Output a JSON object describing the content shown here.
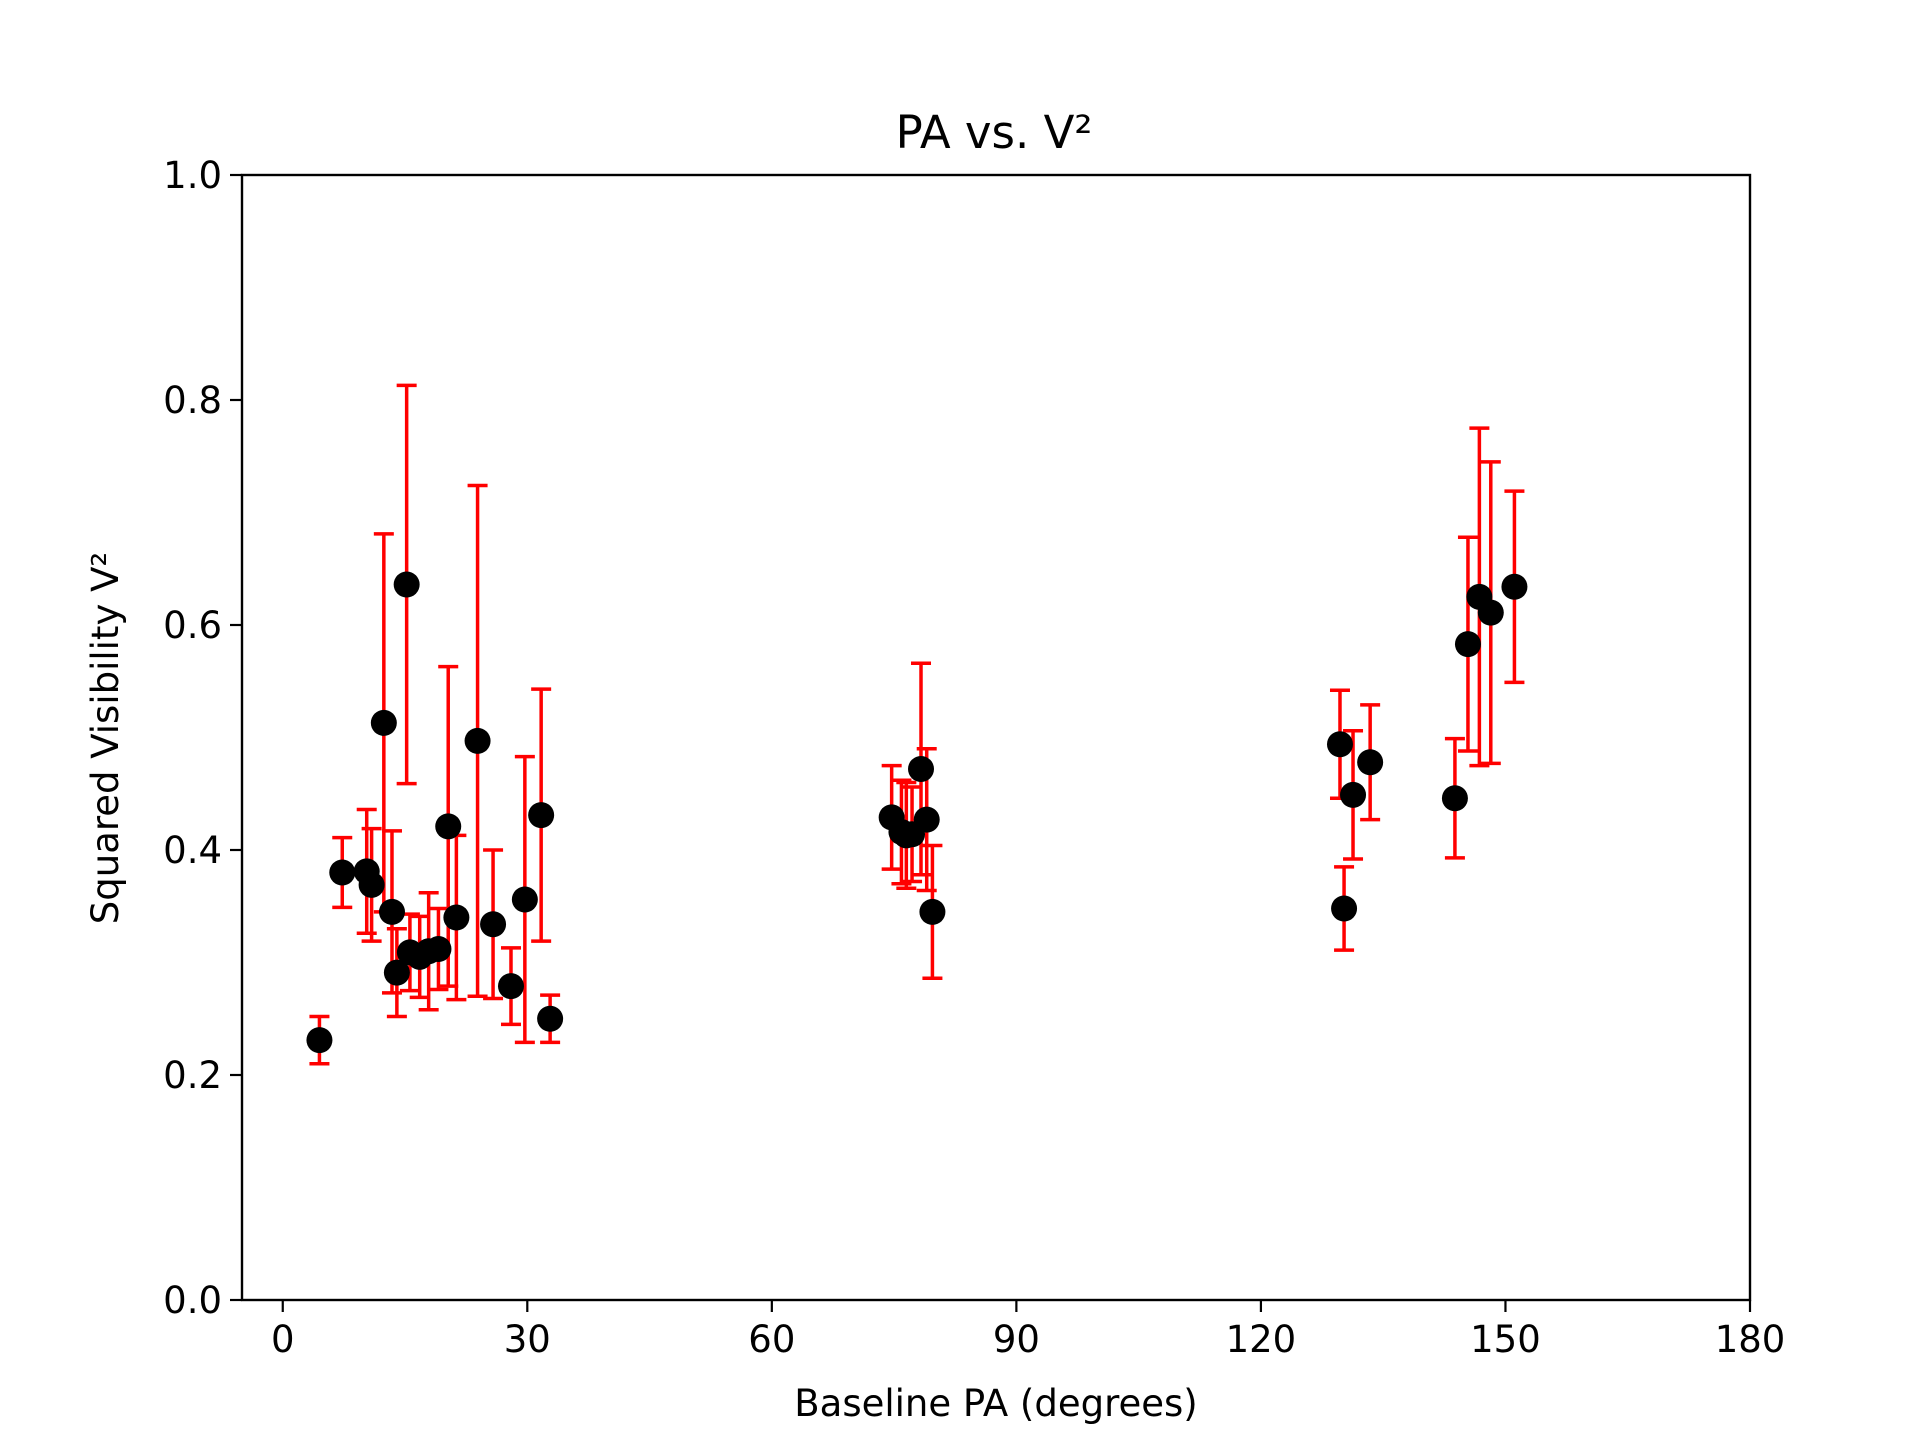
{
  "chart_data": {
    "type": "scatter",
    "title": "PA vs. V²",
    "xlabel": "Baseline PA (degrees)",
    "ylabel": "Squared Visibility V²",
    "xlim": [
      -5,
      180
    ],
    "ylim": [
      0,
      1
    ],
    "xticks": [
      0,
      30,
      60,
      90,
      120,
      150,
      180
    ],
    "xtick_labels": [
      "0",
      "30",
      "60",
      "90",
      "120",
      "150",
      "180"
    ],
    "yticks": [
      0.0,
      0.2,
      0.4,
      0.6,
      0.8,
      1.0
    ],
    "ytick_labels": [
      "0.0",
      "0.2",
      "0.4",
      "0.6",
      "0.8",
      "1.0"
    ],
    "grid": false,
    "legend": false,
    "marker_color": "#000000",
    "errorbar_color": "#ff0000",
    "series": [
      {
        "points": [
          {
            "x": 4.5,
            "y": 0.231,
            "err": 0.021
          },
          {
            "x": 7.3,
            "y": 0.38,
            "err": 0.031
          },
          {
            "x": 10.3,
            "y": 0.381,
            "err": 0.055
          },
          {
            "x": 10.9,
            "y": 0.369,
            "err": 0.05
          },
          {
            "x": 12.4,
            "y": 0.513,
            "err": 0.168
          },
          {
            "x": 13.4,
            "y": 0.345,
            "err": 0.072
          },
          {
            "x": 14.0,
            "y": 0.291,
            "err": 0.039
          },
          {
            "x": 15.2,
            "y": 0.636,
            "err": 0.177
          },
          {
            "x": 15.6,
            "y": 0.309,
            "err": 0.034
          },
          {
            "x": 16.8,
            "y": 0.305,
            "err": 0.036
          },
          {
            "x": 17.9,
            "y": 0.31,
            "err": 0.052
          },
          {
            "x": 19.1,
            "y": 0.312,
            "err": 0.036
          },
          {
            "x": 20.3,
            "y": 0.421,
            "err": 0.142
          },
          {
            "x": 21.3,
            "y": 0.34,
            "err": 0.073
          },
          {
            "x": 23.9,
            "y": 0.497,
            "err": 0.227
          },
          {
            "x": 25.8,
            "y": 0.334,
            "err": 0.066
          },
          {
            "x": 28.0,
            "y": 0.279,
            "err": 0.034
          },
          {
            "x": 29.7,
            "y": 0.356,
            "err": 0.127
          },
          {
            "x": 31.7,
            "y": 0.431,
            "err": 0.112
          },
          {
            "x": 32.8,
            "y": 0.25,
            "err": 0.021
          },
          {
            "x": 74.7,
            "y": 0.429,
            "err": 0.046
          },
          {
            "x": 75.9,
            "y": 0.416,
            "err": 0.046
          },
          {
            "x": 76.5,
            "y": 0.413,
            "err": 0.047
          },
          {
            "x": 77.2,
            "y": 0.414,
            "err": 0.042
          },
          {
            "x": 78.3,
            "y": 0.472,
            "err": 0.094
          },
          {
            "x": 79.0,
            "y": 0.427,
            "err": 0.063
          },
          {
            "x": 79.7,
            "y": 0.345,
            "err": 0.059
          },
          {
            "x": 129.7,
            "y": 0.494,
            "err": 0.048
          },
          {
            "x": 130.2,
            "y": 0.348,
            "err": 0.037
          },
          {
            "x": 131.3,
            "y": 0.449,
            "err": 0.057
          },
          {
            "x": 133.4,
            "y": 0.478,
            "err": 0.051
          },
          {
            "x": 143.8,
            "y": 0.446,
            "err": 0.053
          },
          {
            "x": 145.4,
            "y": 0.583,
            "err": 0.095
          },
          {
            "x": 146.8,
            "y": 0.625,
            "err": 0.15
          },
          {
            "x": 148.2,
            "y": 0.611,
            "err": 0.134
          },
          {
            "x": 151.1,
            "y": 0.634,
            "err": 0.085
          }
        ]
      }
    ]
  }
}
